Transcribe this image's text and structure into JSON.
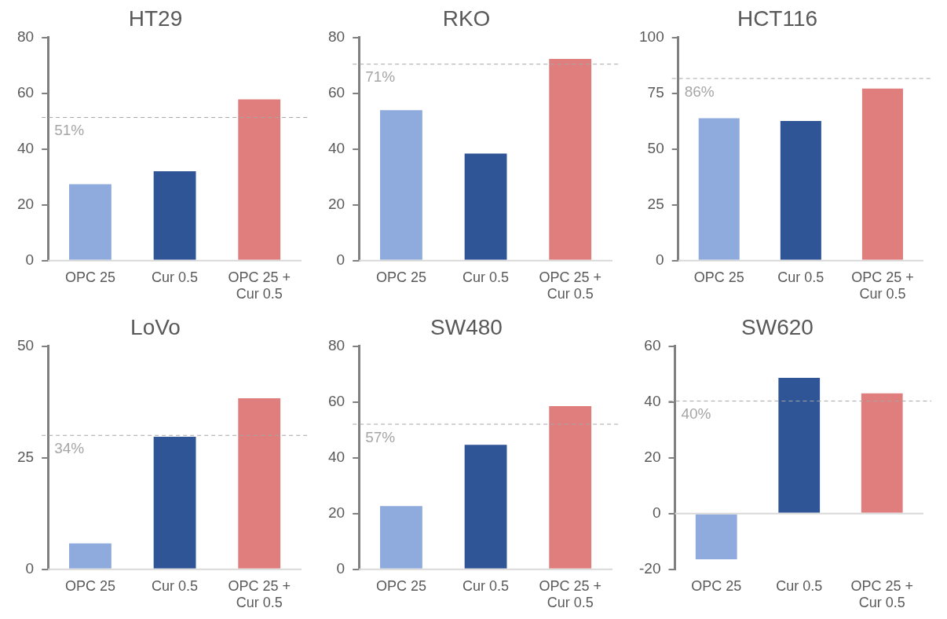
{
  "chart_data": [
    {
      "type": "bar",
      "title": "HT29",
      "categories": [
        "OPC 25",
        "Cur 0.5",
        "OPC 25 + Cur 0.5"
      ],
      "values": [
        27.4,
        32,
        57.8
      ],
      "colors": [
        "#8faadc",
        "#2f5597",
        "#e07e7e"
      ],
      "ylim": [
        0,
        80
      ],
      "yticks": [
        0,
        20,
        40,
        60,
        80
      ],
      "ref_lines": [
        {
          "axis": "y",
          "value": 51.3,
          "color": "#a6a6a6",
          "line_style": "dashed"
        }
      ],
      "annotations": [
        "51%"
      ]
    },
    {
      "type": "bar",
      "title": "RKO",
      "categories": [
        "OPC 25",
        "Cur 0.5",
        "OPC 25 + Cur 0.5"
      ],
      "values": [
        53.9,
        38.4,
        72.3
      ],
      "colors": [
        "#8faadc",
        "#2f5597",
        "#e07e7e"
      ],
      "ylim": [
        0,
        80
      ],
      "yticks": [
        0,
        20,
        40,
        60,
        80
      ],
      "ref_lines": [
        {
          "axis": "y",
          "value": 70.4,
          "color": "#a6a6a6",
          "line_style": "dashed"
        }
      ],
      "annotations": [
        "71%"
      ]
    },
    {
      "type": "bar",
      "title": "HCT116",
      "categories": [
        "OPC 25",
        "Cur 0.5",
        "OPC 25 + Cur 0.5"
      ],
      "values": [
        63.8,
        62.6,
        77.1
      ],
      "colors": [
        "#8faadc",
        "#2f5597",
        "#e07e7e"
      ],
      "ylim": [
        0,
        100
      ],
      "yticks": [
        0,
        25,
        50,
        75,
        100
      ],
      "ref_lines": [
        {
          "axis": "y",
          "value": 81.6,
          "color": "#a6a6a6",
          "line_style": "dashed"
        }
      ],
      "annotations": [
        "86%"
      ]
    },
    {
      "type": "bar",
      "title": "LoVo",
      "categories": [
        "OPC 25",
        "Cur 0.5",
        "OPC 25 + Cur 0.5"
      ],
      "values": [
        5.8,
        29.7,
        38.3
      ],
      "colors": [
        "#8faadc",
        "#2f5597",
        "#e07e7e"
      ],
      "ylim": [
        0,
        50
      ],
      "yticks": [
        0,
        25,
        50
      ],
      "ref_lines": [
        {
          "axis": "y",
          "value": 30,
          "color": "#a6a6a6",
          "line_style": "dashed"
        }
      ],
      "annotations": [
        "34%"
      ]
    },
    {
      "type": "bar",
      "title": "SW480",
      "categories": [
        "OPC 25",
        "Cur 0.5",
        "OPC 25 + Cur 0.5"
      ],
      "values": [
        22.7,
        44.6,
        58.5
      ],
      "colors": [
        "#8faadc",
        "#2f5597",
        "#e07e7e"
      ],
      "ylim": [
        0,
        80
      ],
      "yticks": [
        0,
        20,
        40,
        60,
        80
      ],
      "ref_lines": [
        {
          "axis": "y",
          "value": 52,
          "color": "#a6a6a6",
          "line_style": "dashed"
        }
      ],
      "annotations": [
        "57%"
      ]
    },
    {
      "type": "bar",
      "title": "SW620",
      "categories": [
        "OPC 25",
        "Cur 0.5",
        "OPC 25 + Cur 0.5"
      ],
      "values": [
        -16.4,
        48.6,
        43.1
      ],
      "colors": [
        "#8faadc",
        "#2f5597",
        "#e07e7e"
      ],
      "ylim": [
        -20,
        60
      ],
      "yticks": [
        -20,
        0,
        20,
        40,
        60
      ],
      "ref_lines": [
        {
          "axis": "y",
          "value": 40.3,
          "color": "#a6a6a6",
          "line_style": "dashed"
        }
      ],
      "annotations": [
        "40%"
      ]
    }
  ]
}
